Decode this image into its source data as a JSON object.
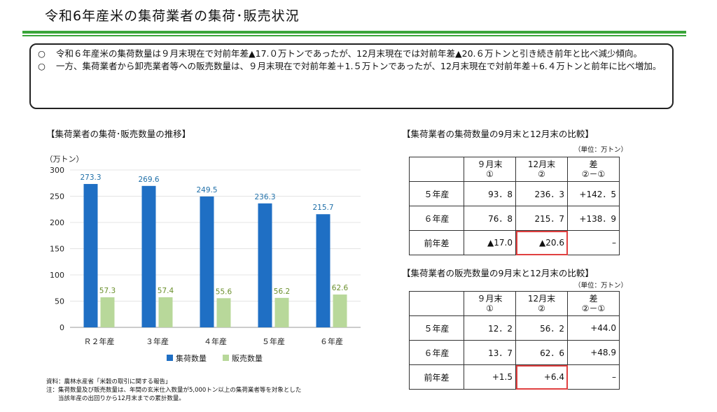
{
  "page": {
    "title": "令和6年産米の集荷業者の集荷･販売状況",
    "bullets": [
      {
        "mark": "○",
        "text": "令和６年産米の集荷数量は９月末現在で対前年差▲17.０万トンであったが、12月末現在では対前年差▲20.６万トンと引き続き前年と比べ減少傾向。"
      },
      {
        "mark": "○",
        "text": "一方、集荷業者から卸売業者等への販売数量は、９月末現在で対前年差＋1.５万トンであったが、12月末現在で対前年差＋6.４万トンと前年に比べ増加。"
      }
    ],
    "left_section_title": "【集荷業者の集荷･販売数量の推移】",
    "notes": [
      "資料：農林水産省「米穀の取引に関する報告」",
      "注：集荷数量及び販売数量は、年間の玄米仕入数量が5,000トン以上の集荷業者等を対象とした",
      "　　当該年産の出回りから12月末までの累計数量。"
    ]
  },
  "chart_data": {
    "type": "bar",
    "ylabel": "（万トン）",
    "ylim": [
      0,
      300
    ],
    "yticks": [
      0,
      50,
      100,
      150,
      200,
      250,
      300
    ],
    "categories": [
      "Ｒ２年産",
      "３年産",
      "４年産",
      "５年産",
      "６年産"
    ],
    "series": [
      {
        "name": "集荷数量",
        "color": "#1f6fc4",
        "values": [
          273.3,
          269.6,
          249.5,
          236.3,
          215.7
        ]
      },
      {
        "name": "販売数量",
        "color": "#b8d89a",
        "values": [
          57.3,
          57.4,
          55.6,
          56.2,
          62.6
        ]
      }
    ],
    "label_colors": [
      "#1f6fa8",
      "#6a8f2c"
    ],
    "grid": true,
    "legend": "bottom"
  },
  "tables": [
    {
      "title": "【集荷業者の集荷数量の9月末と12月末の比較】",
      "unit": "（単位：万トン）",
      "headers": [
        [
          "９月末",
          "①"
        ],
        [
          "12月末",
          "②"
        ],
        [
          "差",
          "②－①"
        ]
      ],
      "rows": [
        {
          "label": "５年産",
          "cells": [
            "93．8",
            "236．3",
            "+142．5"
          ]
        },
        {
          "label": "６年産",
          "cells": [
            "76．8",
            "215．7",
            "+138．9"
          ]
        },
        {
          "label": "前年差",
          "cells": [
            "▲17.0",
            "▲20.6",
            "–"
          ]
        }
      ]
    },
    {
      "title": "【集荷業者の販売数量の9月末と12月末の比較】",
      "unit": "（単位：万トン）",
      "headers": [
        [
          "９月末",
          "①"
        ],
        [
          "12月末",
          "②"
        ],
        [
          "差",
          "②－①"
        ]
      ],
      "rows": [
        {
          "label": "５年産",
          "cells": [
            "12．2",
            "56．2",
            "+44.0"
          ]
        },
        {
          "label": "６年産",
          "cells": [
            "13．7",
            "62．6",
            "+48.9"
          ]
        },
        {
          "label": "前年差",
          "cells": [
            "+1.5",
            "+6.4",
            "–"
          ]
        }
      ]
    }
  ]
}
